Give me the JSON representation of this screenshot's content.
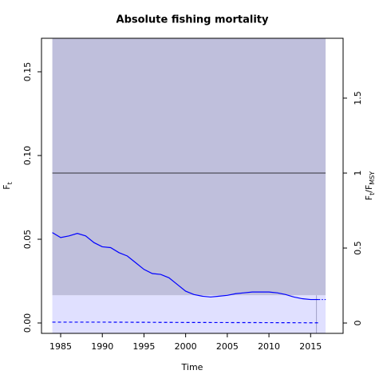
{
  "chart_data": {
    "type": "line",
    "title": "Absolute fishing mortality",
    "xlabel": "Time",
    "ylabel": [
      {
        "text": "F"
      },
      {
        "text": "t",
        "sub": true
      }
    ],
    "y2label": [
      {
        "text": "F"
      },
      {
        "text": "t",
        "sub": true
      },
      {
        "text": "/F"
      },
      {
        "text": "MSY",
        "sub": true
      }
    ],
    "xlim": [
      1982.7,
      2018.9
    ],
    "ylim": [
      -0.0062,
      0.17
    ],
    "y2lim": [
      -0.069,
      1.899
    ],
    "xticks": [
      1985,
      1990,
      1995,
      2000,
      2005,
      2010,
      2015
    ],
    "yticks": [
      {
        "value": 0,
        "label": "0.00"
      },
      {
        "value": 0.05,
        "label": "0.05"
      },
      {
        "value": 0.1,
        "label": "0.10"
      },
      {
        "value": 0.15,
        "label": "0.15"
      }
    ],
    "y2ticks": [
      0,
      0.5,
      1,
      1.5
    ],
    "bands": [
      {
        "color": "#bfbfdc",
        "x": [
          1984,
          2016.8
        ],
        "range": [
          0.0165,
          0.17
        ]
      },
      {
        "color": "#e0e0ff",
        "x": [
          1984,
          2016.8
        ],
        "range": [
          -0.0062,
          0.0165
        ]
      }
    ],
    "reference_line": {
      "axis": "y2",
      "value": 1,
      "color": "#000000"
    },
    "vline": {
      "value": 2015.7,
      "color": "#a0a0c8"
    },
    "series": [
      {
        "color": "#0000ff",
        "style": "solid",
        "x": [
          1984,
          1985,
          1986,
          1987,
          1988,
          1989,
          1990,
          1991,
          1992,
          1993,
          1994,
          1995,
          1996,
          1997,
          1998,
          1999,
          2000,
          2001,
          2002,
          2003,
          2004,
          2005,
          2006,
          2007,
          2008,
          2009,
          2010,
          2011,
          2012,
          2013,
          2014,
          2015,
          2016
        ],
        "values": [
          0.054,
          0.051,
          0.052,
          0.0535,
          0.052,
          0.048,
          0.0455,
          0.045,
          0.042,
          0.04,
          0.036,
          0.032,
          0.0295,
          0.029,
          0.027,
          0.023,
          0.019,
          0.017,
          0.016,
          0.0155,
          0.016,
          0.0165,
          0.0175,
          0.018,
          0.0185,
          0.0185,
          0.0185,
          0.018,
          0.017,
          0.0155,
          0.0145,
          0.014,
          0.014
        ]
      },
      {
        "color": "#0000ff",
        "style": "dotted",
        "x": [
          2016,
          2017
        ],
        "values": [
          0.014,
          0.014
        ]
      },
      {
        "color": "#0000ff",
        "style": "dashed",
        "x": [
          1984,
          1990,
          2000,
          2010,
          2016
        ],
        "values": [
          0.0005,
          0.0005,
          0.0003,
          0.0002,
          0.0001
        ]
      }
    ]
  }
}
